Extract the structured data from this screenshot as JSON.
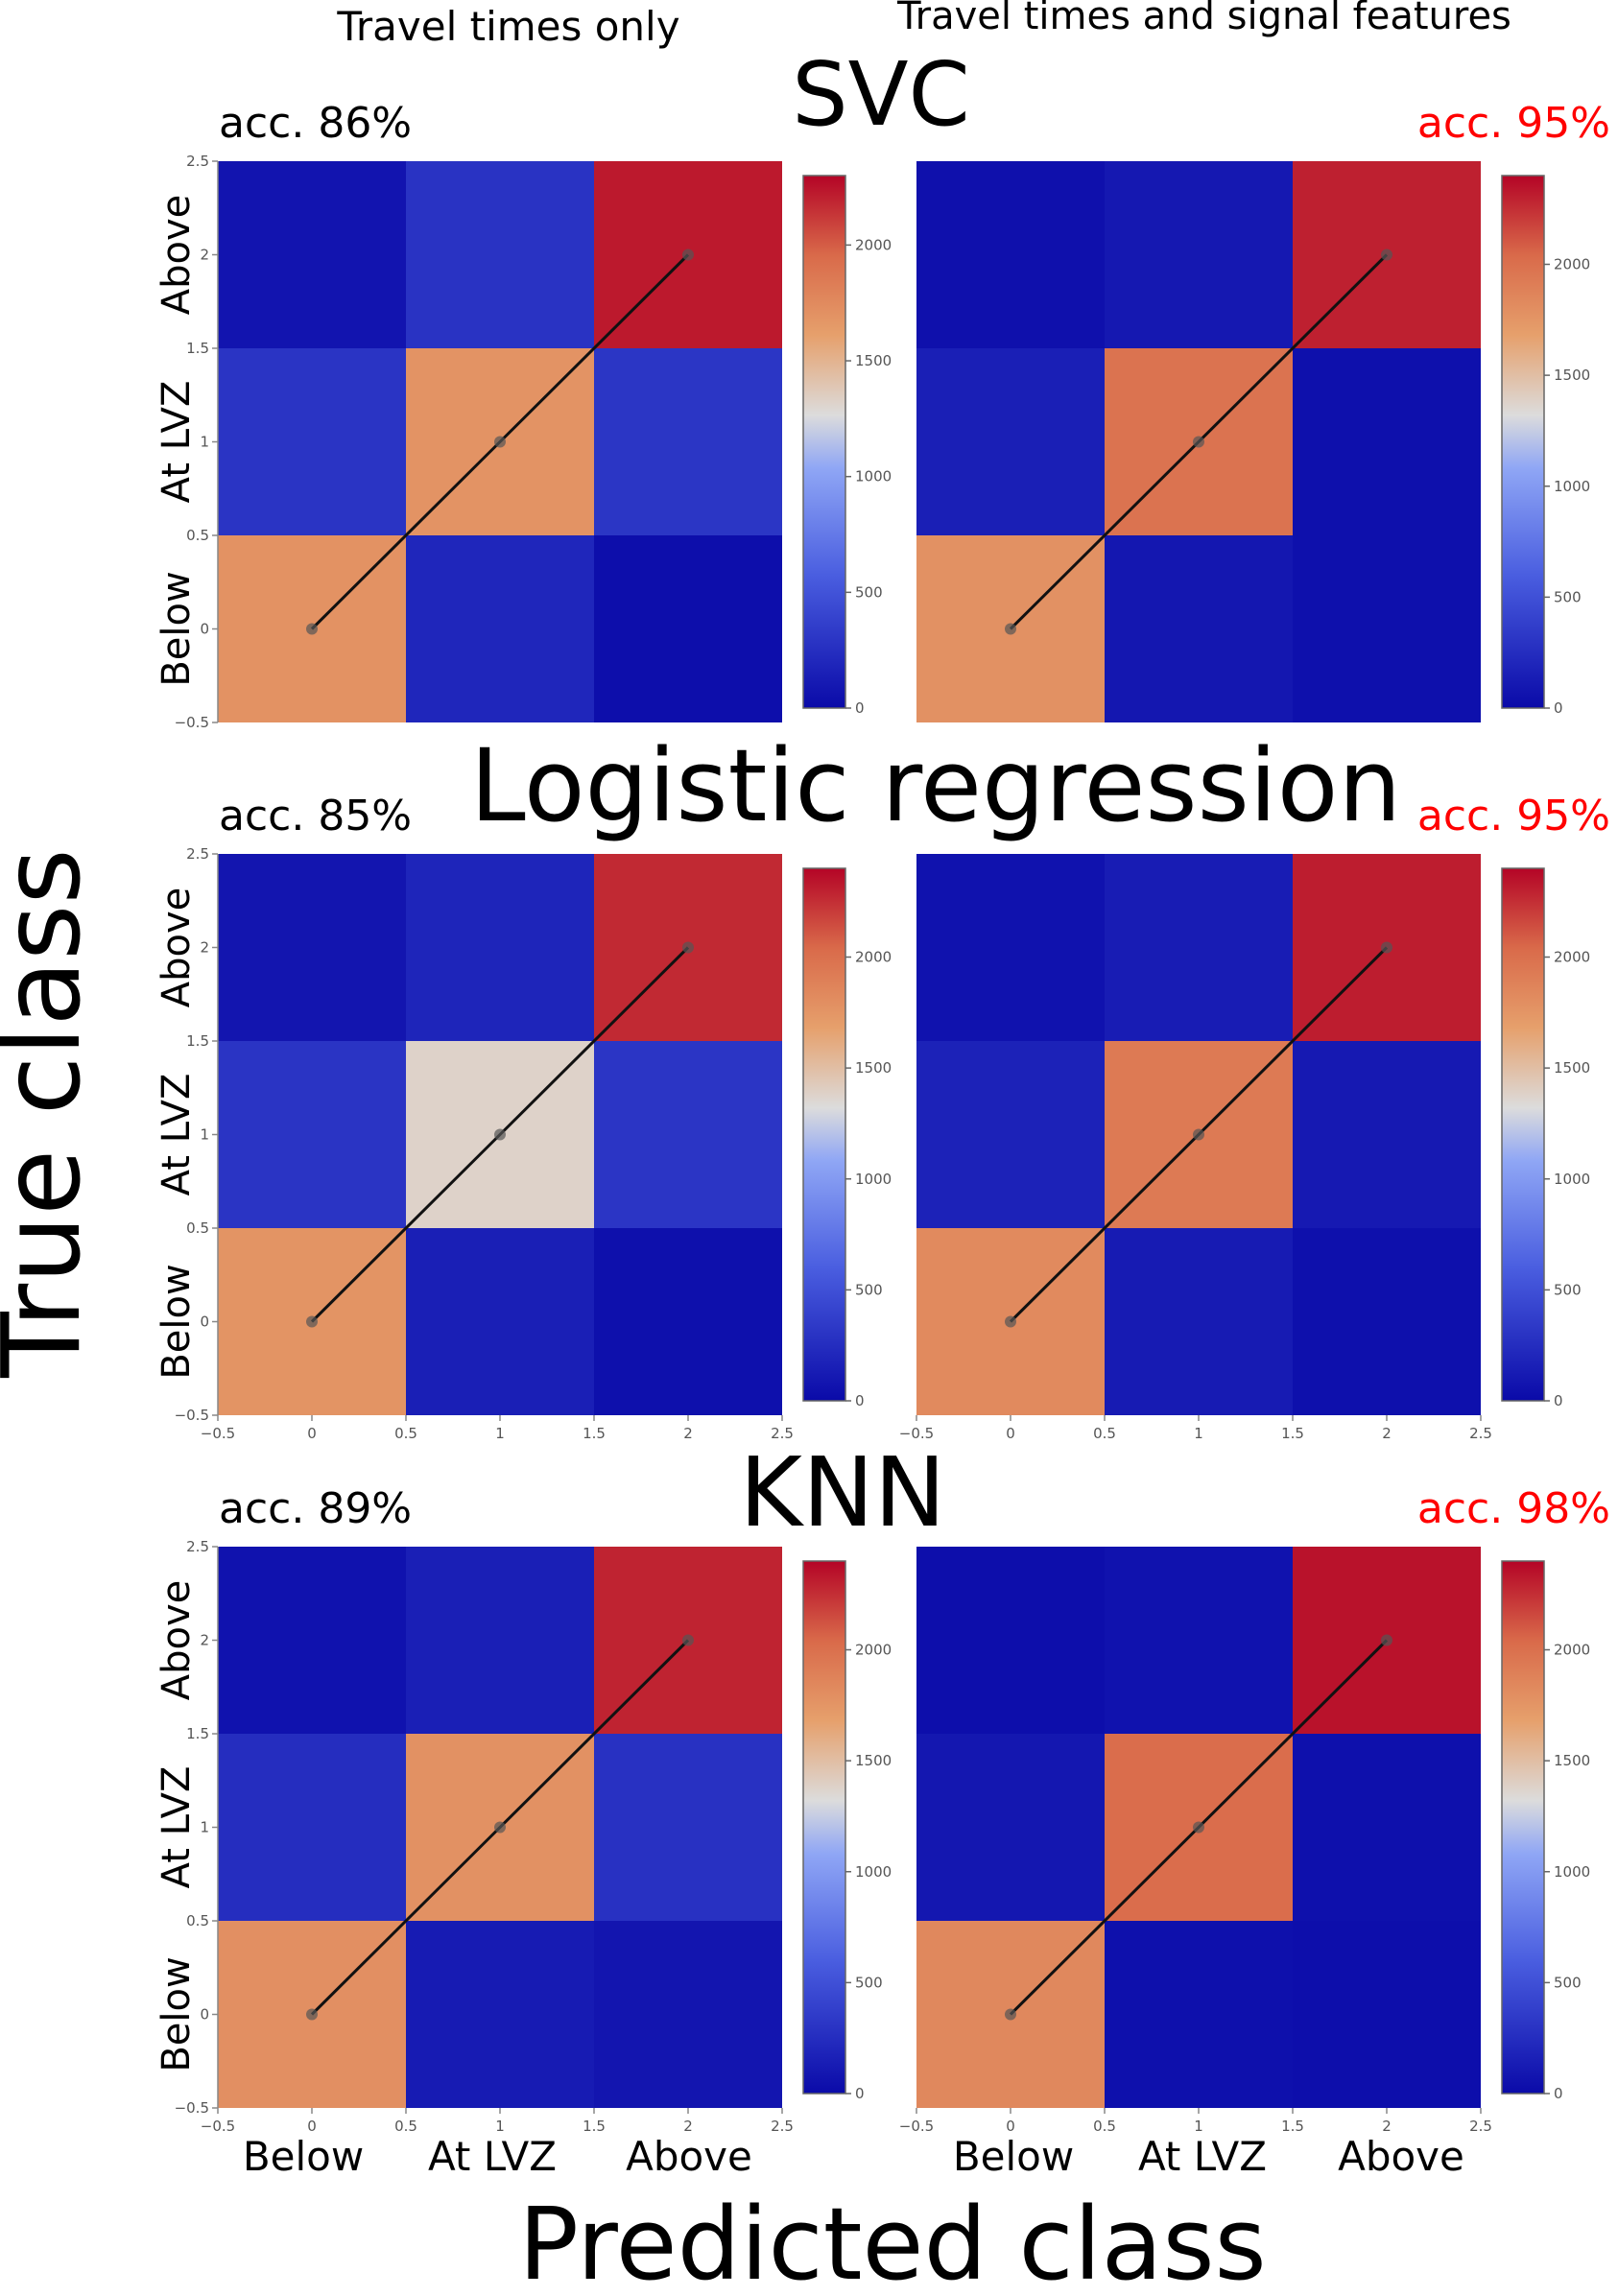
{
  "figure": {
    "column_titles": [
      "Travel times only",
      "Travel times and signal features"
    ],
    "row_titles": [
      "SVC",
      "Logistic regression",
      "KNN"
    ],
    "ylabel_big": "True class",
    "xlabel_big": "Predicted class",
    "class_labels": [
      "Below",
      "At LVZ",
      "Above"
    ],
    "colorbar_ticks": [
      "0",
      "500",
      "1000",
      "1500",
      "2000"
    ],
    "axis_ticks": [
      "−0.5",
      "0",
      "0.5",
      "1",
      "1.5",
      "2",
      "2.5"
    ],
    "colors": {
      "low": "#0a0aa8",
      "mid": "#dcdcdc",
      "high": "#b40426",
      "accent": "#ff0000"
    }
  },
  "chart_data": [
    {
      "type": "heatmap",
      "model": "SVC",
      "features": "Travel times only",
      "title": "acc. 86%",
      "accuracy_color": "#000000",
      "categories": [
        "Below",
        "At LVZ",
        "Above"
      ],
      "matrix": [
        [
          1700,
          190,
          30
        ],
        [
          290,
          1690,
          300
        ],
        [
          70,
          280,
          2230
        ]
      ],
      "zlim": [
        0,
        2300
      ],
      "xlim": [
        -0.5,
        2.5
      ],
      "ylim": [
        -0.5,
        2.5
      ],
      "xlabel": "Predicted class",
      "ylabel": "True class"
    },
    {
      "type": "heatmap",
      "model": "SVC",
      "features": "Travel times and signal features",
      "title": "acc. 95%",
      "accuracy_color": "#ff0000",
      "categories": [
        "Below",
        "At LVZ",
        "Above"
      ],
      "matrix": [
        [
          1780,
          90,
          40
        ],
        [
          150,
          1980,
          40
        ],
        [
          45,
          100,
          2300
        ]
      ],
      "zlim": [
        0,
        2400
      ],
      "xlim": [
        -0.5,
        2.5
      ],
      "ylim": [
        -0.5,
        2.5
      ],
      "xlabel": "Predicted class",
      "ylabel": "True class"
    },
    {
      "type": "heatmap",
      "model": "Logistic regression",
      "features": "Travel times only",
      "title": "acc. 85%",
      "accuracy_color": "#000000",
      "categories": [
        "Below",
        "At LVZ",
        "Above"
      ],
      "matrix": [
        [
          1760,
          150,
          40
        ],
        [
          300,
          1380,
          310
        ],
        [
          80,
          190,
          2270
        ]
      ],
      "zlim": [
        0,
        2400
      ],
      "xlim": [
        -0.5,
        2.5
      ],
      "ylim": [
        -0.5,
        2.5
      ],
      "xlabel": "Predicted class",
      "ylabel": "True class"
    },
    {
      "type": "heatmap",
      "model": "Logistic regression",
      "features": "Travel times and signal features",
      "title": "acc. 95%",
      "accuracy_color": "#ff0000",
      "categories": [
        "Below",
        "At LVZ",
        "Above"
      ],
      "matrix": [
        [
          1830,
          120,
          40
        ],
        [
          170,
          1930,
          110
        ],
        [
          60,
          130,
          2310
        ]
      ],
      "zlim": [
        0,
        2400
      ],
      "xlim": [
        -0.5,
        2.5
      ],
      "ylim": [
        -0.5,
        2.5
      ],
      "xlabel": "Predicted class",
      "ylabel": "True class"
    },
    {
      "type": "heatmap",
      "model": "KNN",
      "features": "Travel times only",
      "title": "acc. 89%",
      "accuracy_color": "#000000",
      "categories": [
        "Below",
        "At LVZ",
        "Above"
      ],
      "matrix": [
        [
          1790,
          120,
          80
        ],
        [
          250,
          1780,
          280
        ],
        [
          60,
          150,
          2290
        ]
      ],
      "zlim": [
        0,
        2400
      ],
      "xlim": [
        -0.5,
        2.5
      ],
      "ylim": [
        -0.5,
        2.5
      ],
      "xlabel": "Predicted class",
      "ylabel": "True class"
    },
    {
      "type": "heatmap",
      "model": "KNN",
      "features": "Travel times and signal features",
      "title": "acc. 98%",
      "accuracy_color": "#ff0000",
      "categories": [
        "Below",
        "At LVZ",
        "Above"
      ],
      "matrix": [
        [
          1840,
          40,
          30
        ],
        [
          90,
          2020,
          40
        ],
        [
          30,
          60,
          2350
        ]
      ],
      "zlim": [
        0,
        2400
      ],
      "xlim": [
        -0.5,
        2.5
      ],
      "ylim": [
        -0.5,
        2.5
      ],
      "xlabel": "Predicted class",
      "ylabel": "True class"
    }
  ]
}
